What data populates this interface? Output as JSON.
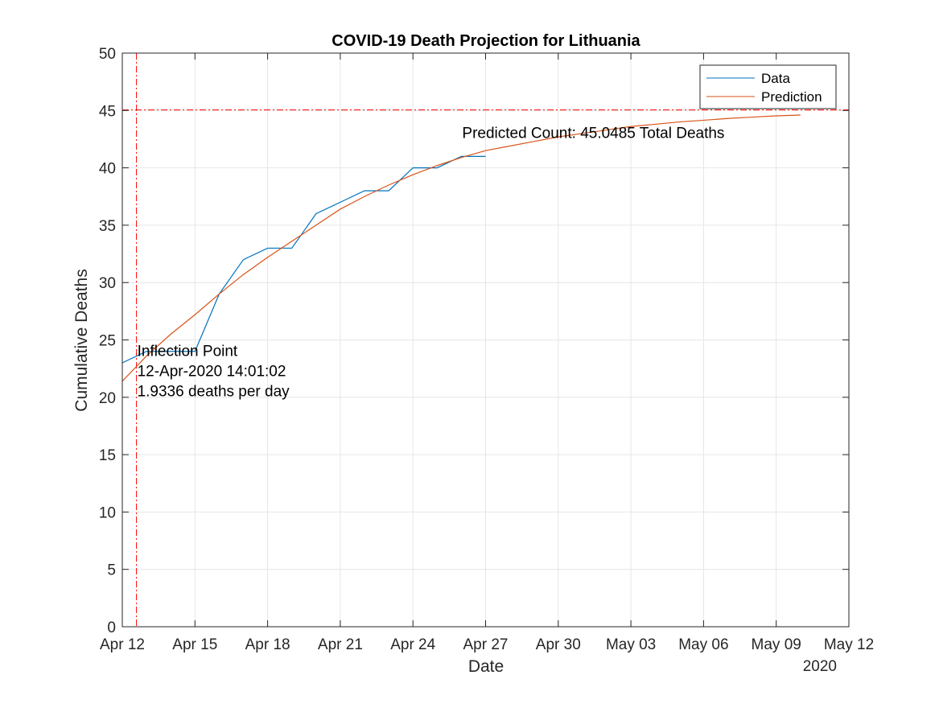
{
  "chart_data": {
    "type": "line",
    "title": "COVID-19 Death Projection for Lithuania",
    "xlabel": "Date",
    "ylabel": "Cumulative Deaths",
    "year_label": "2020",
    "grid": true,
    "legend_position": "top-right",
    "xlim": [
      "2020-04-12",
      "2020-05-12"
    ],
    "ylim": [
      0,
      50
    ],
    "x_ticks": [
      "2020-04-12",
      "2020-04-15",
      "2020-04-18",
      "2020-04-21",
      "2020-04-24",
      "2020-04-27",
      "2020-04-30",
      "2020-05-03",
      "2020-05-06",
      "2020-05-09",
      "2020-05-12"
    ],
    "x_tick_labels": [
      "Apr 12",
      "Apr 15",
      "Apr 18",
      "Apr 21",
      "Apr 24",
      "Apr 27",
      "Apr 30",
      "May 03",
      "May 06",
      "May 09",
      "May 12"
    ],
    "y_ticks": [
      0,
      5,
      10,
      15,
      20,
      25,
      30,
      35,
      40,
      45,
      50
    ],
    "y_tick_labels": [
      "0",
      "5",
      "10",
      "15",
      "20",
      "25",
      "30",
      "35",
      "40",
      "45",
      "50"
    ],
    "series": [
      {
        "name": "Data",
        "color": "#0072BD",
        "x": [
          "2020-04-12",
          "2020-04-13",
          "2020-04-14",
          "2020-04-15",
          "2020-04-16",
          "2020-04-17",
          "2020-04-18",
          "2020-04-19",
          "2020-04-20",
          "2020-04-21",
          "2020-04-22",
          "2020-04-23",
          "2020-04-24",
          "2020-04-25",
          "2020-04-26",
          "2020-04-27"
        ],
        "y": [
          23,
          24,
          24,
          24,
          29,
          32,
          33,
          33,
          36,
          37,
          38,
          38,
          40,
          40,
          41,
          41
        ]
      },
      {
        "name": "Prediction",
        "color": "#D95319",
        "x": [
          "2020-04-12",
          "2020-04-13",
          "2020-04-14",
          "2020-04-15",
          "2020-04-16",
          "2020-04-17",
          "2020-04-18",
          "2020-04-19",
          "2020-04-20",
          "2020-04-21",
          "2020-04-22",
          "2020-04-23",
          "2020-04-24",
          "2020-04-25",
          "2020-04-26",
          "2020-04-27",
          "2020-04-28",
          "2020-04-29",
          "2020-04-30",
          "2020-05-01",
          "2020-05-02",
          "2020-05-03",
          "2020-05-04",
          "2020-05-05",
          "2020-05-06",
          "2020-05-07",
          "2020-05-08",
          "2020-05-09",
          "2020-05-10"
        ],
        "y": [
          21.4,
          23.6,
          25.5,
          27.2,
          29.0,
          30.7,
          32.2,
          33.6,
          35.0,
          36.4,
          37.5,
          38.5,
          39.4,
          40.2,
          40.9,
          41.5,
          41.9,
          42.3,
          42.7,
          43.0,
          43.3,
          43.6,
          43.8,
          44.0,
          44.15,
          44.3,
          44.42,
          44.53,
          44.6
        ]
      }
    ],
    "reference_lines": [
      {
        "orientation": "horizontal",
        "y": 45.0485,
        "color": "#FF0000",
        "style": "dash-dot"
      },
      {
        "orientation": "vertical",
        "x": "2020-04-12T14:01:02",
        "color": "#FF0000",
        "style": "dash-dot"
      }
    ],
    "annotations": [
      {
        "lines": [
          "Inflection Point",
          "12-Apr-2020 14:01:02",
          "1.9336 deaths per day"
        ],
        "anchor_x": "2020-04-12T14:01:02",
        "anchor_y": 24.8
      },
      {
        "lines": [
          "Predicted Count: 45.0485 Total Deaths"
        ],
        "anchor_x": "2020-04-26",
        "anchor_y": 43.8
      }
    ]
  }
}
